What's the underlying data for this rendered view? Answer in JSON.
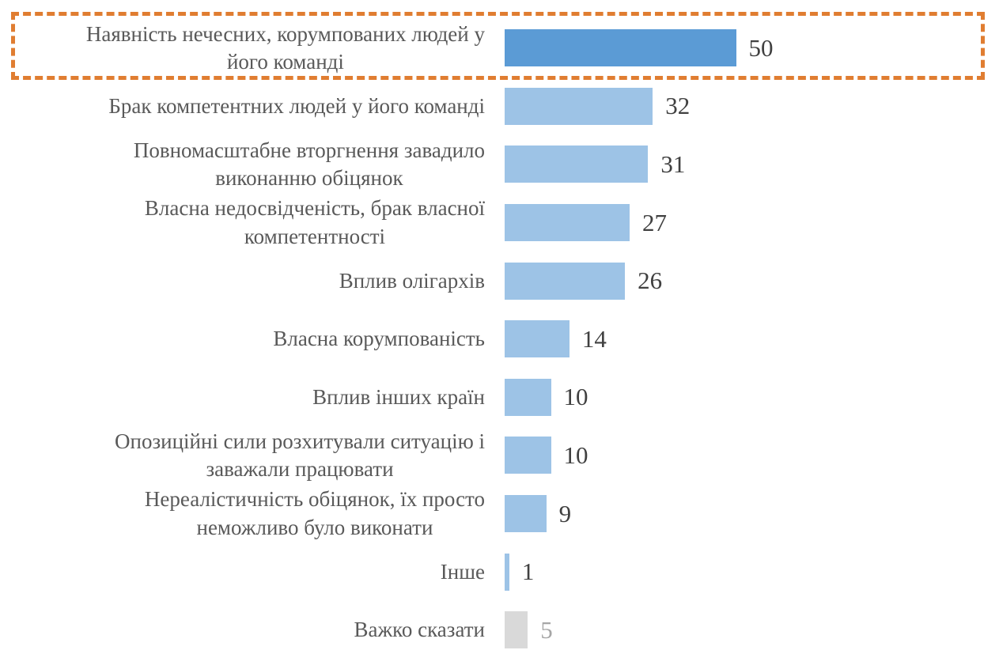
{
  "chart_data": {
    "type": "bar",
    "orientation": "horizontal",
    "title": "",
    "xlabel": "",
    "ylabel": "",
    "xlim": [
      0,
      55
    ],
    "grid": false,
    "legend": false,
    "value_labels_shown": true,
    "categories": [
      "Наявність нечесних, корумпованих людей у його команді",
      "Брак компетентних людей у його команді",
      "Повномасштабне вторгнення завадило виконанню обіцянок",
      "Власна недосвідченість, брак власної компетентності",
      "Вплив олігархів",
      "Власна корумпованість",
      "Вплив інших країн",
      "Опозиційні сили розхитували ситуацію і заважали працювати",
      "Нереалістичність обіцянок, їх просто неможливо було виконати",
      "Інше",
      "Важко сказати"
    ],
    "values": [
      50,
      32,
      31,
      27,
      26,
      14,
      10,
      10,
      9,
      1,
      5
    ],
    "bars": [
      {
        "lines": [
          "Наявність нечесних, корумпованих людей у",
          "його команді"
        ],
        "value": 50,
        "style": "highlight",
        "value_style": "normal",
        "highlighted": true
      },
      {
        "lines": [
          "Брак компетентних людей у його команді"
        ],
        "value": 32,
        "style": "normal",
        "value_style": "normal",
        "highlighted": false
      },
      {
        "lines": [
          "Повномасштабне вторгнення завадило",
          "виконанню обіцянок"
        ],
        "value": 31,
        "style": "normal",
        "value_style": "normal",
        "highlighted": false
      },
      {
        "lines": [
          "Власна недосвідченість, брак власної",
          "компетентності"
        ],
        "value": 27,
        "style": "normal",
        "value_style": "normal",
        "highlighted": false
      },
      {
        "lines": [
          "Вплив олігархів"
        ],
        "value": 26,
        "style": "normal",
        "value_style": "normal",
        "highlighted": false
      },
      {
        "lines": [
          "Власна корумпованість"
        ],
        "value": 14,
        "style": "normal",
        "value_style": "normal",
        "highlighted": false
      },
      {
        "lines": [
          "Вплив інших країн"
        ],
        "value": 10,
        "style": "normal",
        "value_style": "normal",
        "highlighted": false
      },
      {
        "lines": [
          "Опозиційні сили розхитували ситуацію і",
          "заважали працювати"
        ],
        "value": 10,
        "style": "normal",
        "value_style": "normal",
        "highlighted": false
      },
      {
        "lines": [
          "Нереалістичність обіцянок, їх просто",
          "неможливо було виконати"
        ],
        "value": 9,
        "style": "normal",
        "value_style": "normal",
        "highlighted": false
      },
      {
        "lines": [
          "Інше"
        ],
        "value": 1,
        "style": "normal",
        "value_style": "normal",
        "highlighted": false
      },
      {
        "lines": [
          "Важко сказати"
        ],
        "value": 5,
        "style": "muted",
        "value_style": "muted",
        "highlighted": false
      }
    ],
    "colors": {
      "bar_highlight": "#5b9bd5",
      "bar_normal": "#9dc3e6",
      "bar_muted": "#d9d9d9",
      "label_text": "#595959",
      "value_text": "#404040",
      "value_text_muted": "#a6a6a6",
      "highlight_border": "#e07d31"
    },
    "annotations": {
      "highlight_box": {
        "shape": "dashed-rectangle",
        "color": "#e07d31",
        "around_category": "Наявність нечесних, корумпованих людей у його команді"
      }
    }
  }
}
